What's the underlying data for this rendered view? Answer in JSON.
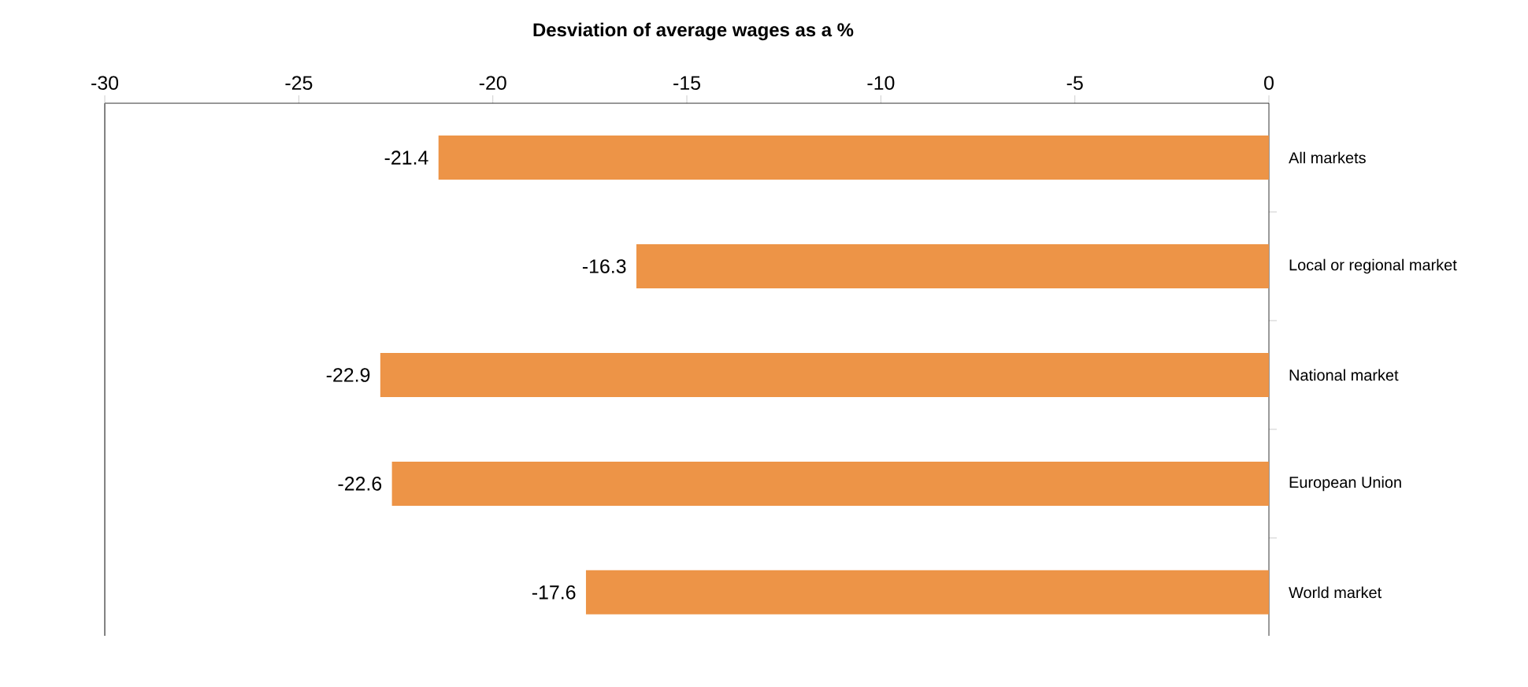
{
  "chart_data": {
    "type": "bar",
    "orientation": "horizontal",
    "title": "Desviation of average wages as a %",
    "categories": [
      "All markets",
      "Local or regional market",
      "National market",
      "European Union",
      "World market"
    ],
    "values": [
      -21.4,
      -16.3,
      -22.9,
      -22.6,
      -17.6
    ],
    "color": "#ed9447",
    "xlim": [
      -30,
      0
    ],
    "xticks": [
      -30,
      -25,
      -20,
      -15,
      -10,
      -5,
      0
    ],
    "data_labels": true,
    "grid": false
  }
}
